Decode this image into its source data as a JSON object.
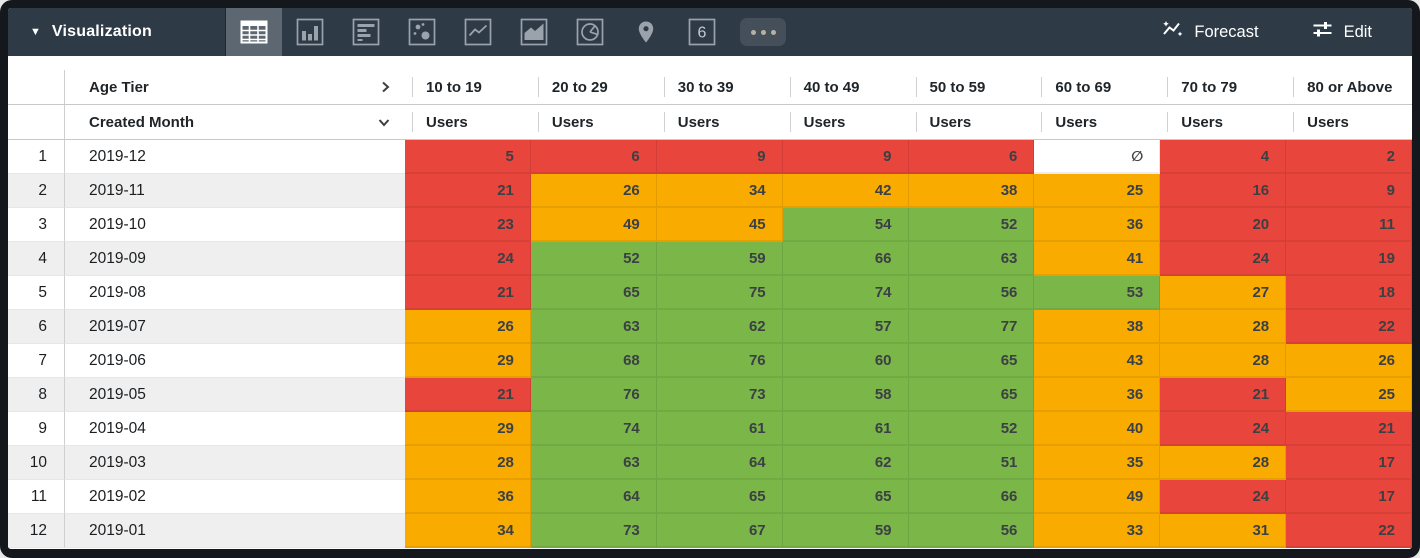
{
  "toolbar": {
    "title": "Visualization",
    "viz_tabs": [
      "table",
      "column-chart",
      "bar-chart",
      "scatter",
      "line-chart",
      "area-chart",
      "pie-chart",
      "map",
      "single-value",
      "more-options"
    ],
    "selected_tab": "table",
    "single_value_glyph": "6",
    "forecast_label": "Forecast",
    "edit_label": "Edit"
  },
  "table": {
    "pivot_field": "Age Tier",
    "row_field": "Created Month",
    "measure_label": "Users",
    "columns": [
      "10 to 19",
      "20 to 29",
      "30 to 39",
      "40 to 49",
      "50 to 59",
      "60 to 69",
      "70 to 79",
      "80 or Above"
    ],
    "null_symbol": "∅",
    "rows": [
      {
        "index": 1,
        "month": "2019-12",
        "cells": [
          {
            "v": "5",
            "c": "r"
          },
          {
            "v": "6",
            "c": "r"
          },
          {
            "v": "9",
            "c": "r"
          },
          {
            "v": "9",
            "c": "r"
          },
          {
            "v": "6",
            "c": "r"
          },
          {
            "v": "∅",
            "c": "n"
          },
          {
            "v": "4",
            "c": "r"
          },
          {
            "v": "2",
            "c": "r"
          }
        ]
      },
      {
        "index": 2,
        "month": "2019-11",
        "cells": [
          {
            "v": "21",
            "c": "r"
          },
          {
            "v": "26",
            "c": "o"
          },
          {
            "v": "34",
            "c": "o"
          },
          {
            "v": "42",
            "c": "o"
          },
          {
            "v": "38",
            "c": "o"
          },
          {
            "v": "25",
            "c": "o"
          },
          {
            "v": "16",
            "c": "r"
          },
          {
            "v": "9",
            "c": "r"
          }
        ]
      },
      {
        "index": 3,
        "month": "2019-10",
        "cells": [
          {
            "v": "23",
            "c": "r"
          },
          {
            "v": "49",
            "c": "o"
          },
          {
            "v": "45",
            "c": "o"
          },
          {
            "v": "54",
            "c": "g"
          },
          {
            "v": "52",
            "c": "g"
          },
          {
            "v": "36",
            "c": "o"
          },
          {
            "v": "20",
            "c": "r"
          },
          {
            "v": "11",
            "c": "r"
          }
        ]
      },
      {
        "index": 4,
        "month": "2019-09",
        "cells": [
          {
            "v": "24",
            "c": "r"
          },
          {
            "v": "52",
            "c": "g"
          },
          {
            "v": "59",
            "c": "g"
          },
          {
            "v": "66",
            "c": "g"
          },
          {
            "v": "63",
            "c": "g"
          },
          {
            "v": "41",
            "c": "o"
          },
          {
            "v": "24",
            "c": "r"
          },
          {
            "v": "19",
            "c": "r"
          }
        ]
      },
      {
        "index": 5,
        "month": "2019-08",
        "cells": [
          {
            "v": "21",
            "c": "r"
          },
          {
            "v": "65",
            "c": "g"
          },
          {
            "v": "75",
            "c": "g"
          },
          {
            "v": "74",
            "c": "g"
          },
          {
            "v": "56",
            "c": "g"
          },
          {
            "v": "53",
            "c": "g"
          },
          {
            "v": "27",
            "c": "o"
          },
          {
            "v": "18",
            "c": "r"
          }
        ]
      },
      {
        "index": 6,
        "month": "2019-07",
        "cells": [
          {
            "v": "26",
            "c": "o"
          },
          {
            "v": "63",
            "c": "g"
          },
          {
            "v": "62",
            "c": "g"
          },
          {
            "v": "57",
            "c": "g"
          },
          {
            "v": "77",
            "c": "g"
          },
          {
            "v": "38",
            "c": "o"
          },
          {
            "v": "28",
            "c": "o"
          },
          {
            "v": "22",
            "c": "r"
          }
        ]
      },
      {
        "index": 7,
        "month": "2019-06",
        "cells": [
          {
            "v": "29",
            "c": "o"
          },
          {
            "v": "68",
            "c": "g"
          },
          {
            "v": "76",
            "c": "g"
          },
          {
            "v": "60",
            "c": "g"
          },
          {
            "v": "65",
            "c": "g"
          },
          {
            "v": "43",
            "c": "o"
          },
          {
            "v": "28",
            "c": "o"
          },
          {
            "v": "26",
            "c": "o"
          }
        ]
      },
      {
        "index": 8,
        "month": "2019-05",
        "cells": [
          {
            "v": "21",
            "c": "r"
          },
          {
            "v": "76",
            "c": "g"
          },
          {
            "v": "73",
            "c": "g"
          },
          {
            "v": "58",
            "c": "g"
          },
          {
            "v": "65",
            "c": "g"
          },
          {
            "v": "36",
            "c": "o"
          },
          {
            "v": "21",
            "c": "r"
          },
          {
            "v": "25",
            "c": "o"
          }
        ]
      },
      {
        "index": 9,
        "month": "2019-04",
        "cells": [
          {
            "v": "29",
            "c": "o"
          },
          {
            "v": "74",
            "c": "g"
          },
          {
            "v": "61",
            "c": "g"
          },
          {
            "v": "61",
            "c": "g"
          },
          {
            "v": "52",
            "c": "g"
          },
          {
            "v": "40",
            "c": "o"
          },
          {
            "v": "24",
            "c": "r"
          },
          {
            "v": "21",
            "c": "r"
          }
        ]
      },
      {
        "index": 10,
        "month": "2019-03",
        "cells": [
          {
            "v": "28",
            "c": "o"
          },
          {
            "v": "63",
            "c": "g"
          },
          {
            "v": "64",
            "c": "g"
          },
          {
            "v": "62",
            "c": "g"
          },
          {
            "v": "51",
            "c": "g"
          },
          {
            "v": "35",
            "c": "o"
          },
          {
            "v": "28",
            "c": "o"
          },
          {
            "v": "17",
            "c": "r"
          }
        ]
      },
      {
        "index": 11,
        "month": "2019-02",
        "cells": [
          {
            "v": "36",
            "c": "o"
          },
          {
            "v": "64",
            "c": "g"
          },
          {
            "v": "65",
            "c": "g"
          },
          {
            "v": "65",
            "c": "g"
          },
          {
            "v": "66",
            "c": "g"
          },
          {
            "v": "49",
            "c": "o"
          },
          {
            "v": "24",
            "c": "r"
          },
          {
            "v": "17",
            "c": "r"
          }
        ]
      },
      {
        "index": 12,
        "month": "2019-01",
        "cells": [
          {
            "v": "34",
            "c": "o"
          },
          {
            "v": "73",
            "c": "g"
          },
          {
            "v": "67",
            "c": "g"
          },
          {
            "v": "59",
            "c": "g"
          },
          {
            "v": "56",
            "c": "g"
          },
          {
            "v": "33",
            "c": "o"
          },
          {
            "v": "31",
            "c": "o"
          },
          {
            "v": "22",
            "c": "r"
          }
        ]
      }
    ]
  },
  "colors": {
    "toolbar_bg": "#2e3a46",
    "selected_tab_bg": "#5d6771",
    "icon": "#9aa3ab",
    "red": "#e8453c",
    "orange": "#f9ab00",
    "green": "#7ab648",
    "row_stripe": "#efefef",
    "null_text": "#b7babd"
  }
}
